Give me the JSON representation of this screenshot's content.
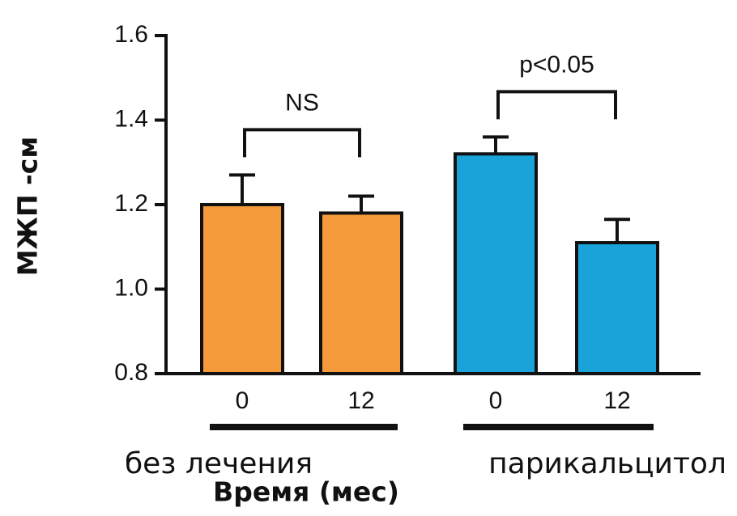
{
  "chart_data": {
    "type": "bar",
    "categories": [
      "0",
      "12",
      "0",
      "12"
    ],
    "values": [
      1.2,
      1.18,
      1.32,
      1.11
    ],
    "errors": [
      0.07,
      0.04,
      0.04,
      0.055
    ],
    "colors": [
      "#f59a3a",
      "#f59a3a",
      "#1aa3d8",
      "#1aa3d8"
    ],
    "groups": [
      "без лечения",
      "парикальцитол"
    ],
    "annotations": [
      "NS",
      "p<0.05"
    ],
    "ylim": [
      0.8,
      1.6
    ],
    "yticks": [
      0.8,
      {
        "value": 1.0,
        "label": "1.0"
      },
      1.2,
      1.4,
      1.6
    ],
    "xlabel": "Время (мес)",
    "ylabel": "МЖП -см"
  }
}
